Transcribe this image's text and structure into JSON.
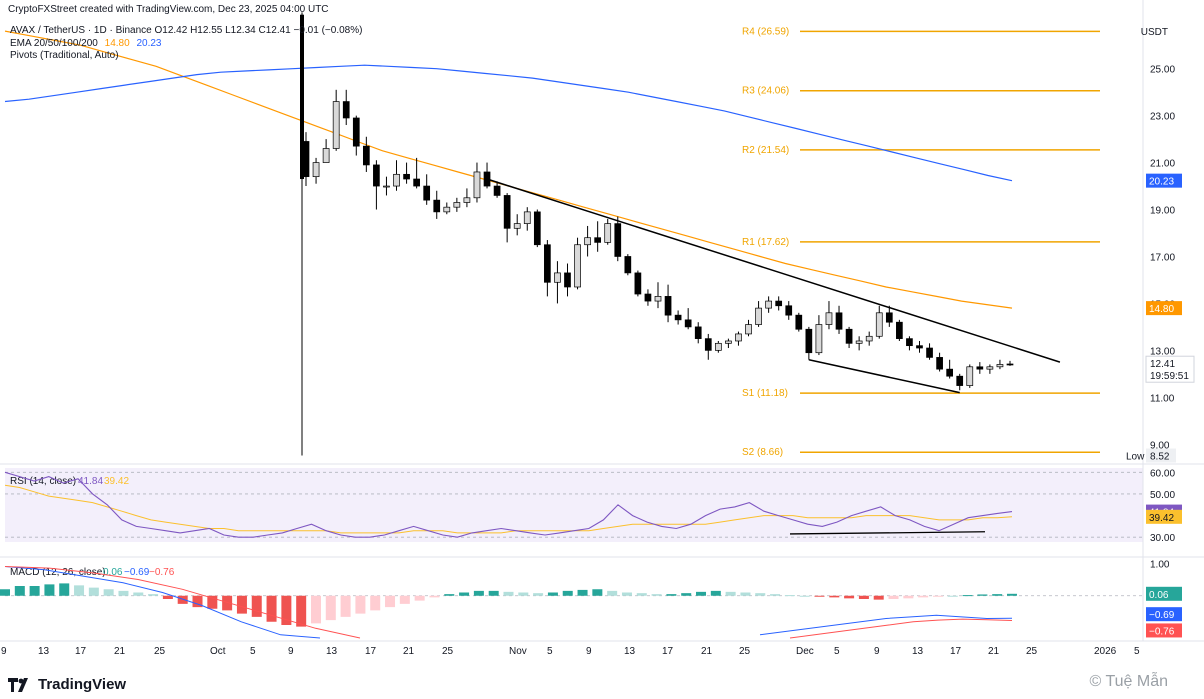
{
  "header": {
    "credit": "CryptoFXStreet created with TradingView.com, Dec 23, 2025 04:00 UTC",
    "symbol_line": "AVAX / TetherUS · 1D · Binance  O12.42  H12.55  L12.34  C12.41  −0.01 (−0.08%)",
    "ema_label": "EMA 20/50/100/200",
    "ema_values": [
      "14.80",
      "20.23"
    ],
    "pivots_label": "Pivots (Traditional, Auto)",
    "currency": "USDT"
  },
  "colors": {
    "ema_orange": "#ff9800",
    "ema_blue": "#2962ff",
    "pivot": "#f0a500",
    "up_candle": "#d9d9d9",
    "down_candle": "#000000",
    "rsi": "#7e57c2",
    "rsi_ma": "#fbc02d",
    "macd_line": "#2962ff",
    "signal_line": "#ff5252",
    "hist_pos": "#26a69a",
    "hist_neg": "#ef5350"
  },
  "chart_data": [
    {
      "type": "candlestick",
      "title": "AVAX / TetherUS · 1D · Binance",
      "ylabel": "USDT",
      "ylim": [
        8.5,
        27.5
      ],
      "y_ticks": [
        "25.00",
        "23.00",
        "21.00",
        "19.00",
        "17.00",
        "15.00",
        "13.00",
        "11.00",
        "9.00"
      ],
      "x_ticks": [
        "9",
        "13",
        "17",
        "21",
        "25",
        "Oct",
        "5",
        "9",
        "13",
        "17",
        "21",
        "25",
        "Nov",
        "5",
        "9",
        "13",
        "17",
        "21",
        "25",
        "Dec",
        "5",
        "9",
        "13",
        "17",
        "21",
        "25",
        "2026",
        "5"
      ],
      "ohlc": [
        [
          21.9,
          22.3,
          20.0,
          20.4
        ],
        [
          20.4,
          21.2,
          20.1,
          21.0
        ],
        [
          21.0,
          22.0,
          21.0,
          21.6
        ],
        [
          21.6,
          24.1,
          21.5,
          23.6
        ],
        [
          23.6,
          24.1,
          22.6,
          22.9
        ],
        [
          22.9,
          23.0,
          21.3,
          21.7
        ],
        [
          21.7,
          22.1,
          20.6,
          20.9
        ],
        [
          20.9,
          21.1,
          19.0,
          20.0
        ],
        [
          20.0,
          20.4,
          19.6,
          20.0
        ],
        [
          20.0,
          21.1,
          19.8,
          20.5
        ],
        [
          20.5,
          21.0,
          20.1,
          20.3
        ],
        [
          20.3,
          21.2,
          19.9,
          20.0
        ],
        [
          20.0,
          20.5,
          19.2,
          19.4
        ],
        [
          19.4,
          19.8,
          18.6,
          18.9
        ],
        [
          18.9,
          19.3,
          18.8,
          19.1
        ],
        [
          19.1,
          19.5,
          18.9,
          19.3
        ],
        [
          19.3,
          19.9,
          19.1,
          19.5
        ],
        [
          19.5,
          21.0,
          19.3,
          20.6
        ],
        [
          20.6,
          21.0,
          19.9,
          20.0
        ],
        [
          20.0,
          20.2,
          19.5,
          19.6
        ],
        [
          19.6,
          19.7,
          17.6,
          18.2
        ],
        [
          18.2,
          18.8,
          17.9,
          18.4
        ],
        [
          18.4,
          19.1,
          18.1,
          18.9
        ],
        [
          18.9,
          19.0,
          17.4,
          17.5
        ],
        [
          17.5,
          17.7,
          15.3,
          15.9
        ],
        [
          15.9,
          16.8,
          15.0,
          16.3
        ],
        [
          16.3,
          16.7,
          15.3,
          15.7
        ],
        [
          15.7,
          17.8,
          15.6,
          17.5
        ],
        [
          17.5,
          18.3,
          17.0,
          17.8
        ],
        [
          17.8,
          18.5,
          17.2,
          17.6
        ],
        [
          17.6,
          18.6,
          17.5,
          18.4
        ],
        [
          18.4,
          18.7,
          16.8,
          17.0
        ],
        [
          17.0,
          17.1,
          16.2,
          16.3
        ],
        [
          16.3,
          16.4,
          15.3,
          15.4
        ],
        [
          15.4,
          15.6,
          14.9,
          15.1
        ],
        [
          15.1,
          15.9,
          14.8,
          15.3
        ],
        [
          15.3,
          15.8,
          14.2,
          14.5
        ],
        [
          14.5,
          14.7,
          14.1,
          14.3
        ],
        [
          14.3,
          14.8,
          13.9,
          14.0
        ],
        [
          14.0,
          14.2,
          13.3,
          13.5
        ],
        [
          13.5,
          13.7,
          12.6,
          13.0
        ],
        [
          13.0,
          13.4,
          12.9,
          13.3
        ],
        [
          13.3,
          13.5,
          13.1,
          13.4
        ],
        [
          13.4,
          13.8,
          13.2,
          13.7
        ],
        [
          13.7,
          14.3,
          13.6,
          14.1
        ],
        [
          14.1,
          15.1,
          14.0,
          14.8
        ],
        [
          14.8,
          15.3,
          14.6,
          15.1
        ],
        [
          15.1,
          15.3,
          14.7,
          14.9
        ],
        [
          14.9,
          15.1,
          14.3,
          14.5
        ],
        [
          14.5,
          14.6,
          13.8,
          13.9
        ],
        [
          13.9,
          14.0,
          12.6,
          12.9
        ],
        [
          12.9,
          14.5,
          12.8,
          14.1
        ],
        [
          14.1,
          15.1,
          13.9,
          14.6
        ],
        [
          14.6,
          14.9,
          13.7,
          13.9
        ],
        [
          13.9,
          14.0,
          13.1,
          13.3
        ],
        [
          13.3,
          13.6,
          13.0,
          13.4
        ],
        [
          13.4,
          13.8,
          13.2,
          13.6
        ],
        [
          13.6,
          14.9,
          13.5,
          14.6
        ],
        [
          14.6,
          14.9,
          14.0,
          14.2
        ],
        [
          14.2,
          14.3,
          13.4,
          13.5
        ],
        [
          13.5,
          13.6,
          13.0,
          13.2
        ],
        [
          13.2,
          13.4,
          12.9,
          13.1
        ],
        [
          13.1,
          13.3,
          12.6,
          12.7
        ],
        [
          12.7,
          12.9,
          12.1,
          12.2
        ],
        [
          12.2,
          12.6,
          11.8,
          11.9
        ],
        [
          11.9,
          12.0,
          11.3,
          11.5
        ],
        [
          11.5,
          12.4,
          11.4,
          12.3
        ],
        [
          12.3,
          12.5,
          12.0,
          12.2
        ],
        [
          12.2,
          12.4,
          12.0,
          12.3
        ],
        [
          12.3,
          12.6,
          12.2,
          12.4
        ],
        [
          12.42,
          12.55,
          12.34,
          12.41
        ]
      ],
      "ema_50": [
        26.6,
        26.4,
        26.2,
        26.0,
        25.7,
        25.4,
        25.1,
        24.7,
        24.3,
        23.9,
        23.5,
        23.1,
        22.7,
        22.3,
        21.9,
        21.5,
        21.2,
        20.9,
        20.6,
        20.3,
        20.0,
        19.7,
        19.4,
        19.1,
        18.8,
        18.5,
        18.2,
        17.9,
        17.6,
        17.3,
        17.0,
        16.7,
        16.45,
        16.2,
        15.95,
        15.7,
        15.5,
        15.3,
        15.1,
        14.95,
        14.8
      ],
      "ema_200": [
        23.6,
        23.7,
        23.85,
        24.0,
        24.15,
        24.3,
        24.45,
        24.6,
        24.75,
        24.85,
        24.9,
        24.95,
        25.0,
        25.05,
        25.1,
        25.15,
        25.1,
        25.05,
        25.0,
        24.9,
        24.8,
        24.7,
        24.6,
        24.45,
        24.3,
        24.15,
        24.0,
        23.8,
        23.6,
        23.4,
        23.2,
        22.95,
        22.7,
        22.45,
        22.2,
        21.95,
        21.7,
        21.45,
        21.2,
        20.95,
        20.7,
        20.45,
        20.23
      ],
      "pivots": [
        {
          "label": "R4 (26.59)",
          "value": 26.59
        },
        {
          "label": "R3 (24.06)",
          "value": 24.06
        },
        {
          "label": "R2 (21.54)",
          "value": 21.54
        },
        {
          "label": "R1 (17.62)",
          "value": 17.62
        },
        {
          "label": "S1 (11.18)",
          "value": 11.18
        },
        {
          "label": "S2 (8.66)",
          "value": 8.66
        }
      ],
      "trendline_upper": [
        [
          18,
          20.3
        ],
        [
          69,
          12.5
        ]
      ],
      "trendline_lower": [
        [
          50,
          12.6
        ],
        [
          65,
          11.2
        ]
      ],
      "tags": {
        "ema_50": "14.80",
        "ema_200": "20.23",
        "last": "12.41",
        "countdown": "19:59:51",
        "low_label": "Low",
        "low_value": "8.52"
      }
    },
    {
      "type": "line",
      "title": "RSI (14, close)",
      "legend_values": [
        "41.84",
        "39.42"
      ],
      "ylim": [
        25,
        62
      ],
      "y_ticks": [
        "60.00",
        "50.00",
        "30.00"
      ],
      "rsi": [
        60,
        58,
        56,
        58,
        55,
        57,
        50,
        45,
        38,
        35,
        34,
        33,
        32,
        33,
        34,
        31,
        30,
        30,
        31,
        32,
        34,
        36,
        33,
        31,
        30,
        30,
        31,
        33,
        35,
        33,
        31,
        30,
        32,
        33,
        34,
        33,
        32,
        31,
        32,
        33,
        34,
        38,
        45,
        40,
        37,
        35,
        34,
        36,
        40,
        43,
        44,
        46,
        42,
        40,
        38,
        36,
        35,
        37,
        40,
        42,
        44,
        40,
        38,
        35,
        33,
        36,
        39,
        40,
        41,
        41.84
      ],
      "rsi_ma": [
        54,
        53,
        51,
        49,
        48,
        47,
        46,
        44,
        42,
        40,
        38,
        37,
        36,
        35,
        34,
        34,
        33,
        33,
        33,
        33,
        33,
        33,
        33,
        32,
        32,
        32,
        32,
        32,
        33,
        33,
        33,
        32,
        32,
        32,
        32,
        33,
        33,
        33,
        33,
        33,
        33,
        34,
        35,
        36,
        36,
        36,
        36,
        36,
        36,
        37,
        38,
        39,
        40,
        40,
        40,
        39,
        39,
        39,
        39,
        40,
        40,
        40,
        40,
        39,
        38,
        38,
        38,
        39,
        39,
        39.42
      ],
      "tags": {
        "rsi": "41.84",
        "ma": "39.42"
      }
    },
    {
      "type": "bar",
      "title": "MACD (12, 26, close)",
      "legend_values": [
        "0.06",
        "−0.69",
        "−0.76"
      ],
      "ylim": [
        -1.3,
        1.1
      ],
      "y_ticks": [
        "1.00"
      ],
      "histogram": [
        0.2,
        0.3,
        0.3,
        0.35,
        0.38,
        0.32,
        0.25,
        0.2,
        0.15,
        0.1,
        0.05,
        -0.1,
        -0.25,
        -0.35,
        -0.4,
        -0.45,
        -0.55,
        -0.65,
        -0.8,
        -0.9,
        -0.95,
        -0.85,
        -0.75,
        -0.65,
        -0.55,
        -0.45,
        -0.35,
        -0.25,
        -0.15,
        -0.05,
        0.05,
        0.1,
        0.15,
        0.15,
        0.12,
        0.1,
        0.08,
        0.1,
        0.15,
        0.18,
        0.2,
        0.15,
        0.1,
        0.08,
        0.05,
        0.05,
        0.08,
        0.12,
        0.15,
        0.12,
        0.1,
        0.08,
        0.05,
        0.02,
        0.0,
        -0.02,
        -0.05,
        -0.08,
        -0.1,
        -0.12,
        -0.1,
        -0.08,
        -0.05,
        -0.02,
        0.0,
        0.02,
        0.04,
        0.05,
        0.06
      ],
      "macd": [
        0.9,
        0.8,
        0.6,
        0.4,
        0.1,
        -0.3,
        -0.8,
        -1.2,
        -1.3
      ],
      "signal": [
        0.9,
        0.85,
        0.7,
        0.5,
        0.2,
        -0.2,
        -0.6,
        -1.0,
        -1.3
      ],
      "macd_tail": [
        -1.2,
        -1.1,
        -1.0,
        -0.9,
        -0.8,
        -0.7,
        -0.65,
        -0.6,
        -0.65,
        -0.7,
        -0.69
      ],
      "signal_tail": [
        -1.3,
        -1.2,
        -1.1,
        -1.0,
        -0.9,
        -0.8,
        -0.75,
        -0.72,
        -0.74,
        -0.76
      ],
      "tags": {
        "hist": "0.06",
        "macd": "−0.69",
        "signal": "−0.76"
      }
    }
  ],
  "footer": {
    "brand": "TradingView",
    "watermark": "© Tuệ Mẫn"
  }
}
